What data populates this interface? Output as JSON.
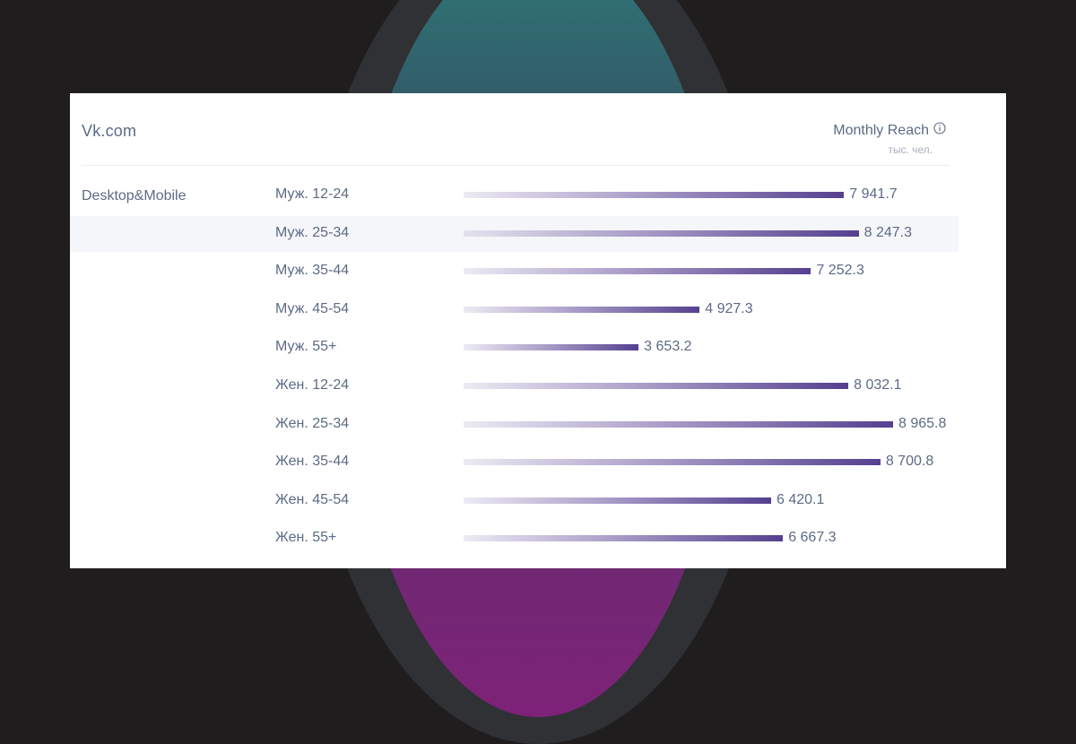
{
  "site_title": "Vk.com",
  "metric": {
    "title": "Monthly Reach",
    "unit": "тыс. чел.",
    "icon": "info-icon"
  },
  "platform": "Desktop&Mobile",
  "colors": {
    "bar_end": "#55408f",
    "text": "#5d6a86",
    "highlight_row": "#f5f6f9"
  },
  "chart_data": {
    "type": "bar",
    "orientation": "horizontal",
    "title": "Monthly Reach",
    "unit": "тыс. чел.",
    "categories": [
      "Муж. 12-24",
      "Муж. 25-34",
      "Муж. 35-44",
      "Муж. 45-54",
      "Муж. 55+",
      "Жен. 12-24",
      "Жен. 25-34",
      "Жен. 35-44",
      "Жен. 45-54",
      "Жен. 55+"
    ],
    "values": [
      7941.7,
      8247.3,
      7252.3,
      4927.3,
      3653.2,
      8032.1,
      8965.8,
      8700.8,
      6420.1,
      6667.3
    ],
    "value_labels": [
      "7 941.7",
      "8 247.3",
      "7 252.3",
      "4 927.3",
      "3 653.2",
      "8 032.1",
      "8 965.8",
      "8 700.8",
      "6 420.1",
      "6 667.3"
    ],
    "highlighted_index": 1,
    "xlim": [
      0,
      8965.8
    ]
  }
}
